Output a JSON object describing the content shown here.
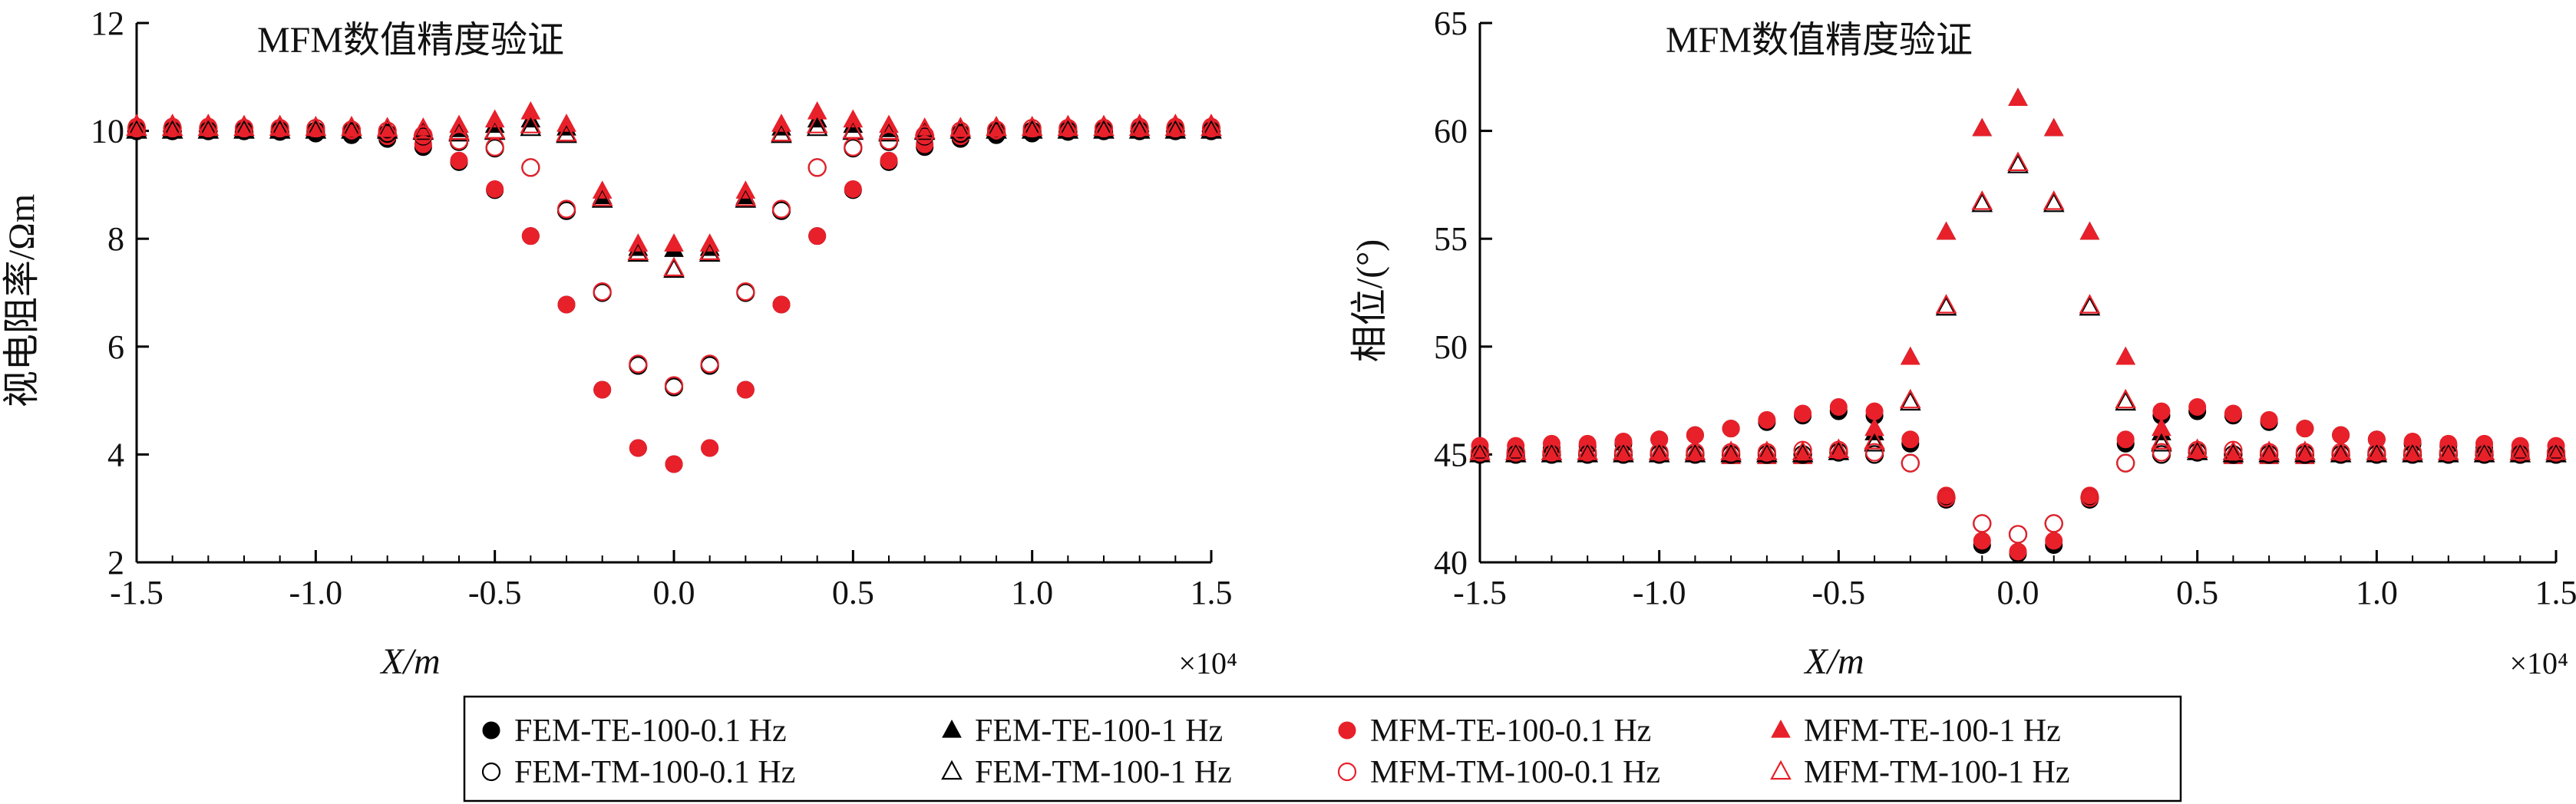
{
  "chart_data": [
    {
      "type": "scatter",
      "title": "MFM数值精度验证",
      "xlabel": "X/m",
      "ylabel": "视电阻率/Ωm",
      "x_multiplier_label": "×10⁴",
      "xlim": [
        -1.5,
        1.5
      ],
      "ylim": [
        2,
        12
      ],
      "xticks": [
        "-1.5",
        "-1.0",
        "-0.5",
        "0.0",
        "0.5",
        "1.0",
        "1.5"
      ],
      "yticks": [
        "2",
        "4",
        "6",
        "8",
        "10",
        "12"
      ],
      "x": [
        -1.5,
        -1.4,
        -1.3,
        -1.2,
        -1.1,
        -1.0,
        -0.9,
        -0.8,
        -0.7,
        -0.6,
        -0.5,
        -0.4,
        -0.3,
        -0.2,
        -0.1,
        0.0,
        0.1,
        0.2,
        0.3,
        0.4,
        0.5,
        0.6,
        0.7,
        0.8,
        0.9,
        1.0,
        1.1,
        1.2,
        1.3,
        1.4,
        1.5
      ],
      "series": [
        {
          "name": "FEM-TE-100-0.1 Hz",
          "values": [
            10.0,
            10.0,
            10.0,
            10.0,
            9.98,
            9.95,
            9.92,
            9.85,
            9.7,
            9.42,
            8.9,
            8.05,
            6.78,
            5.2,
            4.12,
            3.82,
            4.12,
            5.2,
            6.78,
            8.05,
            8.9,
            9.42,
            9.7,
            9.85,
            9.92,
            9.95,
            9.98,
            10.0,
            10.0,
            10.0,
            10.0
          ]
        },
        {
          "name": "FEM-TE-100-1 Hz",
          "values": [
            10.02,
            10.02,
            10.02,
            10.02,
            10.02,
            10.02,
            10.02,
            10.02,
            10.0,
            10.02,
            10.1,
            10.2,
            10.05,
            8.78,
            7.82,
            7.8,
            7.82,
            8.78,
            10.05,
            10.2,
            10.1,
            10.02,
            10.0,
            10.02,
            10.02,
            10.02,
            10.02,
            10.02,
            10.02,
            10.02,
            10.02
          ]
        },
        {
          "name": "MFM-TE-100-0.1 Hz",
          "values": [
            10.08,
            10.08,
            10.08,
            10.06,
            10.04,
            10.0,
            9.98,
            9.9,
            9.75,
            9.45,
            8.92,
            8.05,
            6.78,
            5.2,
            4.12,
            3.82,
            4.12,
            5.2,
            6.78,
            8.05,
            8.92,
            9.45,
            9.75,
            9.9,
            9.98,
            10.0,
            10.04,
            10.06,
            10.08,
            10.08,
            10.08
          ]
        },
        {
          "name": "MFM-TE-100-1 Hz",
          "values": [
            10.12,
            10.12,
            10.12,
            10.1,
            10.1,
            10.08,
            10.08,
            10.06,
            10.05,
            10.1,
            10.2,
            10.35,
            10.12,
            8.88,
            7.9,
            7.9,
            7.9,
            8.88,
            10.12,
            10.35,
            10.2,
            10.1,
            10.05,
            10.06,
            10.08,
            10.08,
            10.1,
            10.1,
            10.12,
            10.12,
            10.12
          ]
        },
        {
          "name": "FEM-TM-100-0.1 Hz",
          "values": [
            10.0,
            10.0,
            10.0,
            10.0,
            10.0,
            10.0,
            9.98,
            9.95,
            9.9,
            9.8,
            9.68,
            9.32,
            8.52,
            7.0,
            5.65,
            5.25,
            5.65,
            7.0,
            8.52,
            9.32,
            9.68,
            9.8,
            9.9,
            9.95,
            9.98,
            10.0,
            10.0,
            10.0,
            10.0,
            10.0,
            10.0
          ]
        },
        {
          "name": "FEM-TM-100-1 Hz",
          "values": [
            10.0,
            10.0,
            10.0,
            10.0,
            10.0,
            10.0,
            10.0,
            10.0,
            9.98,
            9.95,
            9.98,
            10.05,
            9.92,
            8.72,
            7.72,
            7.42,
            7.72,
            8.72,
            9.92,
            10.05,
            9.98,
            9.95,
            9.98,
            10.0,
            10.0,
            10.0,
            10.0,
            10.0,
            10.0,
            10.0,
            10.0
          ]
        },
        {
          "name": "MFM-TM-100-0.1 Hz",
          "values": [
            10.05,
            10.05,
            10.05,
            10.05,
            10.05,
            10.05,
            10.02,
            10.0,
            9.92,
            9.82,
            9.7,
            9.32,
            8.55,
            7.02,
            5.68,
            5.28,
            5.68,
            7.02,
            8.55,
            9.32,
            9.7,
            9.82,
            9.92,
            10.0,
            10.02,
            10.05,
            10.05,
            10.05,
            10.05,
            10.05,
            10.05
          ]
        },
        {
          "name": "MFM-TM-100-1 Hz",
          "values": [
            10.05,
            10.05,
            10.05,
            10.05,
            10.05,
            10.05,
            10.05,
            10.04,
            10.0,
            9.98,
            10.0,
            10.1,
            9.95,
            8.75,
            7.75,
            7.45,
            7.75,
            8.75,
            9.95,
            10.1,
            10.0,
            9.98,
            10.0,
            10.04,
            10.05,
            10.05,
            10.05,
            10.05,
            10.05,
            10.05,
            10.05
          ]
        }
      ]
    },
    {
      "type": "scatter",
      "title": "MFM数值精度验证",
      "xlabel": "X/m",
      "ylabel": "相位/(°)",
      "x_multiplier_label": "×10⁴",
      "xlim": [
        -1.5,
        1.5
      ],
      "ylim": [
        40,
        65
      ],
      "xticks": [
        "-1.5",
        "-1.0",
        "-0.5",
        "0.0",
        "0.5",
        "1.0",
        "1.5"
      ],
      "yticks": [
        "40",
        "45",
        "50",
        "55",
        "60",
        "65"
      ],
      "x": [
        -1.5,
        -1.4,
        -1.3,
        -1.2,
        -1.1,
        -1.0,
        -0.9,
        -0.8,
        -0.7,
        -0.6,
        -0.5,
        -0.4,
        -0.3,
        -0.2,
        -0.1,
        0.0,
        0.1,
        0.2,
        0.3,
        0.4,
        0.5,
        0.6,
        0.7,
        0.8,
        0.9,
        1.0,
        1.1,
        1.2,
        1.3,
        1.4,
        1.5
      ],
      "series": [
        {
          "name": "FEM-TE-100-0.1 Hz",
          "values": [
            45.1,
            45.2,
            45.3,
            45.4,
            45.5,
            45.7,
            45.9,
            46.2,
            46.5,
            46.8,
            47.0,
            46.8,
            45.5,
            42.9,
            40.8,
            40.4,
            40.8,
            42.9,
            45.5,
            46.8,
            47.0,
            46.8,
            46.5,
            46.2,
            45.9,
            45.7,
            45.5,
            45.4,
            45.3,
            45.2,
            45.1
          ]
        },
        {
          "name": "FEM-TE-100-1 Hz",
          "values": [
            45.0,
            45.0,
            45.0,
            45.0,
            45.0,
            45.0,
            45.0,
            44.9,
            44.9,
            44.9,
            45.1,
            46.0,
            49.5,
            55.3,
            60.1,
            61.5,
            60.1,
            55.3,
            49.5,
            46.0,
            45.1,
            44.9,
            44.9,
            44.9,
            45.0,
            45.0,
            45.0,
            45.0,
            45.0,
            45.0,
            45.0
          ]
        },
        {
          "name": "MFM-TE-100-0.1 Hz",
          "values": [
            45.4,
            45.4,
            45.5,
            45.5,
            45.6,
            45.7,
            45.9,
            46.2,
            46.6,
            46.9,
            47.2,
            47.0,
            45.7,
            43.1,
            41.0,
            40.5,
            41.0,
            43.1,
            45.7,
            47.0,
            47.2,
            46.9,
            46.6,
            46.2,
            45.9,
            45.7,
            45.6,
            45.5,
            45.5,
            45.4,
            45.4
          ]
        },
        {
          "name": "MFM-TE-100-1 Hz",
          "values": [
            45.2,
            45.2,
            45.1,
            45.1,
            45.0,
            45.0,
            45.0,
            44.9,
            44.9,
            44.9,
            45.2,
            46.2,
            49.5,
            55.3,
            60.1,
            61.5,
            60.1,
            55.3,
            49.5,
            46.2,
            45.2,
            44.9,
            44.9,
            44.9,
            45.0,
            45.0,
            45.0,
            45.1,
            45.1,
            45.2,
            45.2
          ]
        },
        {
          "name": "FEM-TM-100-0.1 Hz",
          "values": [
            45.0,
            45.0,
            45.0,
            45.0,
            45.0,
            45.0,
            45.0,
            45.0,
            45.0,
            45.0,
            45.1,
            45.0,
            44.6,
            43.0,
            41.8,
            41.3,
            41.8,
            43.0,
            44.6,
            45.0,
            45.1,
            45.0,
            45.0,
            45.0,
            45.0,
            45.0,
            45.0,
            45.0,
            45.0,
            45.0,
            45.0
          ]
        },
        {
          "name": "FEM-TM-100-1 Hz",
          "values": [
            45.0,
            45.0,
            45.0,
            45.0,
            45.0,
            45.0,
            45.0,
            45.0,
            45.0,
            45.0,
            45.1,
            45.5,
            47.4,
            51.8,
            56.6,
            58.4,
            56.6,
            51.8,
            47.4,
            45.5,
            45.1,
            45.0,
            45.0,
            45.0,
            45.0,
            45.0,
            45.0,
            45.0,
            45.0,
            45.0,
            45.0
          ]
        },
        {
          "name": "MFM-TM-100-0.1 Hz",
          "values": [
            45.1,
            45.1,
            45.1,
            45.1,
            45.1,
            45.1,
            45.1,
            45.1,
            45.1,
            45.2,
            45.2,
            45.1,
            44.6,
            43.0,
            41.8,
            41.3,
            41.8,
            43.0,
            44.6,
            45.1,
            45.2,
            45.2,
            45.1,
            45.1,
            45.1,
            45.1,
            45.1,
            45.1,
            45.1,
            45.1,
            45.1
          ]
        },
        {
          "name": "MFM-TM-100-1 Hz",
          "values": [
            45.1,
            45.1,
            45.1,
            45.1,
            45.1,
            45.1,
            45.1,
            45.1,
            45.1,
            45.1,
            45.2,
            45.6,
            47.5,
            51.9,
            56.7,
            58.5,
            56.7,
            51.9,
            47.5,
            45.6,
            45.2,
            45.1,
            45.1,
            45.1,
            45.1,
            45.1,
            45.1,
            45.1,
            45.1,
            45.1,
            45.1
          ]
        }
      ]
    }
  ],
  "legend": {
    "entries": [
      {
        "label": "FEM-TE-100-0.1 Hz",
        "marker": "filled-circle",
        "color": "#000000"
      },
      {
        "label": "FEM-TE-100-1 Hz",
        "marker": "filled-triangle",
        "color": "#000000"
      },
      {
        "label": "MFM-TE-100-0.1 Hz",
        "marker": "filled-circle",
        "color": "#e8202a"
      },
      {
        "label": "MFM-TE-100-1 Hz",
        "marker": "filled-triangle",
        "color": "#e8202a"
      },
      {
        "label": "FEM-TM-100-0.1 Hz",
        "marker": "open-circle",
        "color": "#000000"
      },
      {
        "label": "FEM-TM-100-1 Hz",
        "marker": "open-triangle",
        "color": "#000000"
      },
      {
        "label": "MFM-TM-100-0.1 Hz",
        "marker": "open-circle",
        "color": "#e8202a"
      },
      {
        "label": "MFM-TM-100-1 Hz",
        "marker": "open-triangle",
        "color": "#e8202a"
      }
    ]
  },
  "colors": {
    "fem": "#000000",
    "mfm": "#e8202a"
  }
}
